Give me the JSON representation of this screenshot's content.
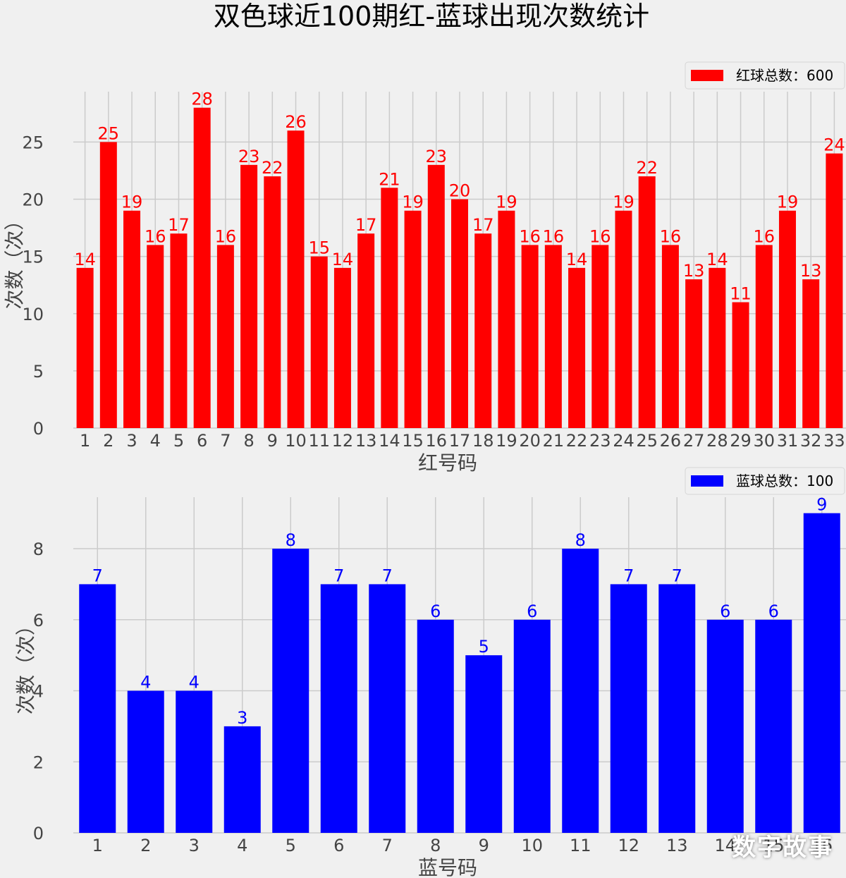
{
  "title": "双色球近100期红-蓝球出现次数统计",
  "watermark": "数字故事",
  "chart_data": [
    {
      "type": "bar",
      "color": "#ff0000",
      "categories": [
        "1",
        "2",
        "3",
        "4",
        "5",
        "6",
        "7",
        "8",
        "9",
        "10",
        "11",
        "12",
        "13",
        "14",
        "15",
        "16",
        "17",
        "18",
        "19",
        "20",
        "21",
        "22",
        "23",
        "24",
        "25",
        "26",
        "27",
        "28",
        "29",
        "30",
        "31",
        "32",
        "33"
      ],
      "values": [
        14,
        25,
        19,
        16,
        17,
        28,
        16,
        23,
        22,
        26,
        15,
        14,
        17,
        21,
        19,
        23,
        20,
        17,
        19,
        16,
        16,
        14,
        16,
        19,
        22,
        16,
        13,
        14,
        11,
        16,
        19,
        13,
        24
      ],
      "series": [
        {
          "name": "红球总数：600"
        }
      ],
      "xlabel": "红号码",
      "ylabel": "次数（次）",
      "yticks": [
        0,
        5,
        10,
        15,
        20,
        25
      ],
      "ylim": [
        0,
        29.4
      ],
      "legend": "top-right",
      "grid": true
    },
    {
      "type": "bar",
      "color": "#0000ff",
      "categories": [
        "1",
        "2",
        "3",
        "4",
        "5",
        "6",
        "7",
        "8",
        "9",
        "10",
        "11",
        "12",
        "13",
        "14",
        "15",
        "16"
      ],
      "values": [
        7,
        4,
        4,
        3,
        8,
        7,
        7,
        6,
        5,
        6,
        8,
        7,
        7,
        6,
        6,
        9
      ],
      "series": [
        {
          "name": "蓝球总数：100"
        }
      ],
      "xlabel": "蓝号码",
      "ylabel": "次数（次）",
      "yticks": [
        0,
        2,
        4,
        6,
        8
      ],
      "ylim": [
        0,
        9.45
      ],
      "legend": "top-right",
      "grid": true
    }
  ]
}
